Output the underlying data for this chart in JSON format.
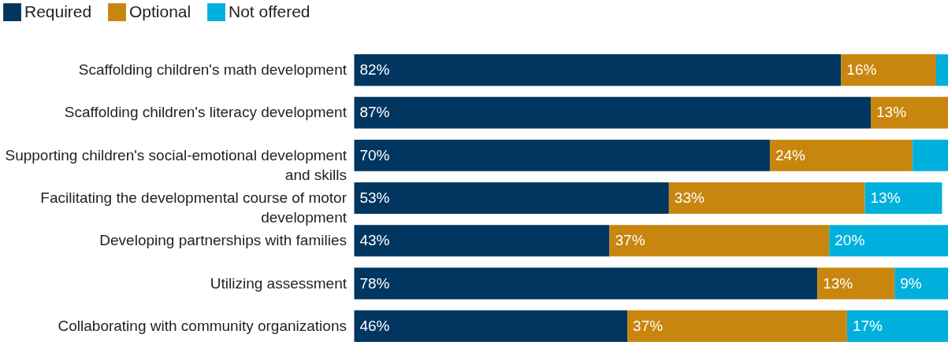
{
  "chart_data": {
    "type": "bar",
    "orientation": "horizontal",
    "stacked": true,
    "legend": "top left",
    "categories": [
      "Scaffolding children's math development",
      "Scaffolding children's literacy development",
      "Supporting children's social-emotional development and skills",
      "Facilitating the developmental course of motor development",
      "Developing partnerships with families",
      "Utilizing assessment",
      "Collaborating with community organizations"
    ],
    "series": [
      {
        "name": "Required",
        "color": "#003660",
        "values": [
          82,
          87,
          70,
          53,
          43,
          78,
          46
        ],
        "value_labels": [
          "82%",
          "87%",
          "70%",
          "53%",
          "43%",
          "78%",
          "46%"
        ]
      },
      {
        "name": "Optional",
        "color": "#c8860e",
        "values": [
          16,
          13,
          24,
          33,
          37,
          13,
          37
        ],
        "value_labels": [
          "16%",
          "13%",
          "24%",
          "33%",
          "37%",
          "13%",
          "37%"
        ]
      },
      {
        "name": "Not offered",
        "color": "#00b0dc",
        "values": [
          2,
          null,
          6,
          13,
          20,
          9,
          17
        ],
        "value_labels": [
          null,
          null,
          null,
          "13%",
          "20%",
          "9%",
          "17%"
        ]
      }
    ]
  }
}
